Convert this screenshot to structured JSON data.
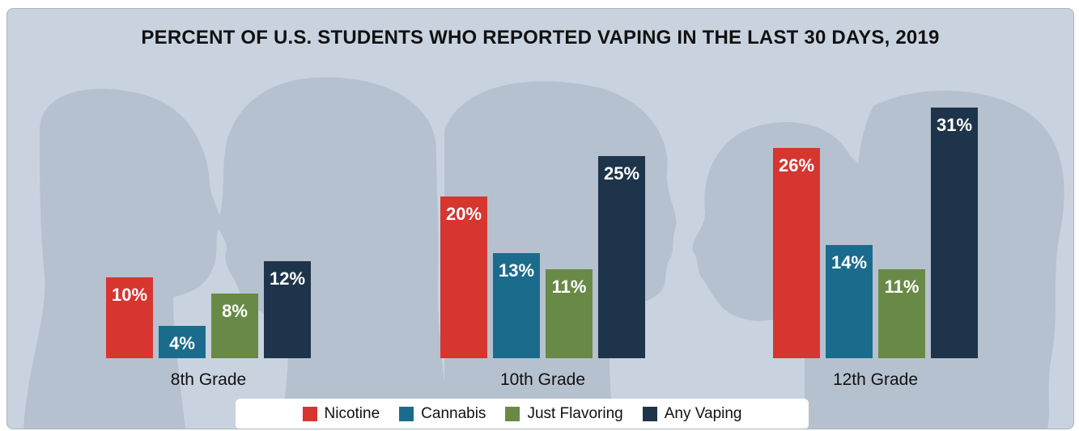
{
  "chart_data": {
    "type": "bar",
    "title": "PERCENT OF U.S. STUDENTS WHO REPORTED VAPING IN THE LAST 30 DAYS, 2019",
    "categories": [
      "8th Grade",
      "10th Grade",
      "12th Grade"
    ],
    "series": [
      {
        "name": "Nicotine",
        "color": "#d63530",
        "values": [
          10,
          20,
          26
        ],
        "labels": [
          "10%",
          "20%",
          "26%"
        ]
      },
      {
        "name": "Cannabis",
        "color": "#1b6b8c",
        "values": [
          4,
          13,
          14
        ],
        "labels": [
          "4%",
          "13%",
          "14%"
        ]
      },
      {
        "name": "Just Flavoring",
        "color": "#688a46",
        "values": [
          8,
          11,
          11
        ],
        "labels": [
          "8%",
          "11%",
          "11%"
        ]
      },
      {
        "name": "Any Vaping",
        "color": "#1e344a",
        "values": [
          12,
          25,
          31
        ],
        "labels": [
          "12%",
          "25%",
          "31%"
        ]
      }
    ],
    "ylim": [
      0,
      31
    ],
    "grid": false,
    "legend_position": "bottom"
  }
}
